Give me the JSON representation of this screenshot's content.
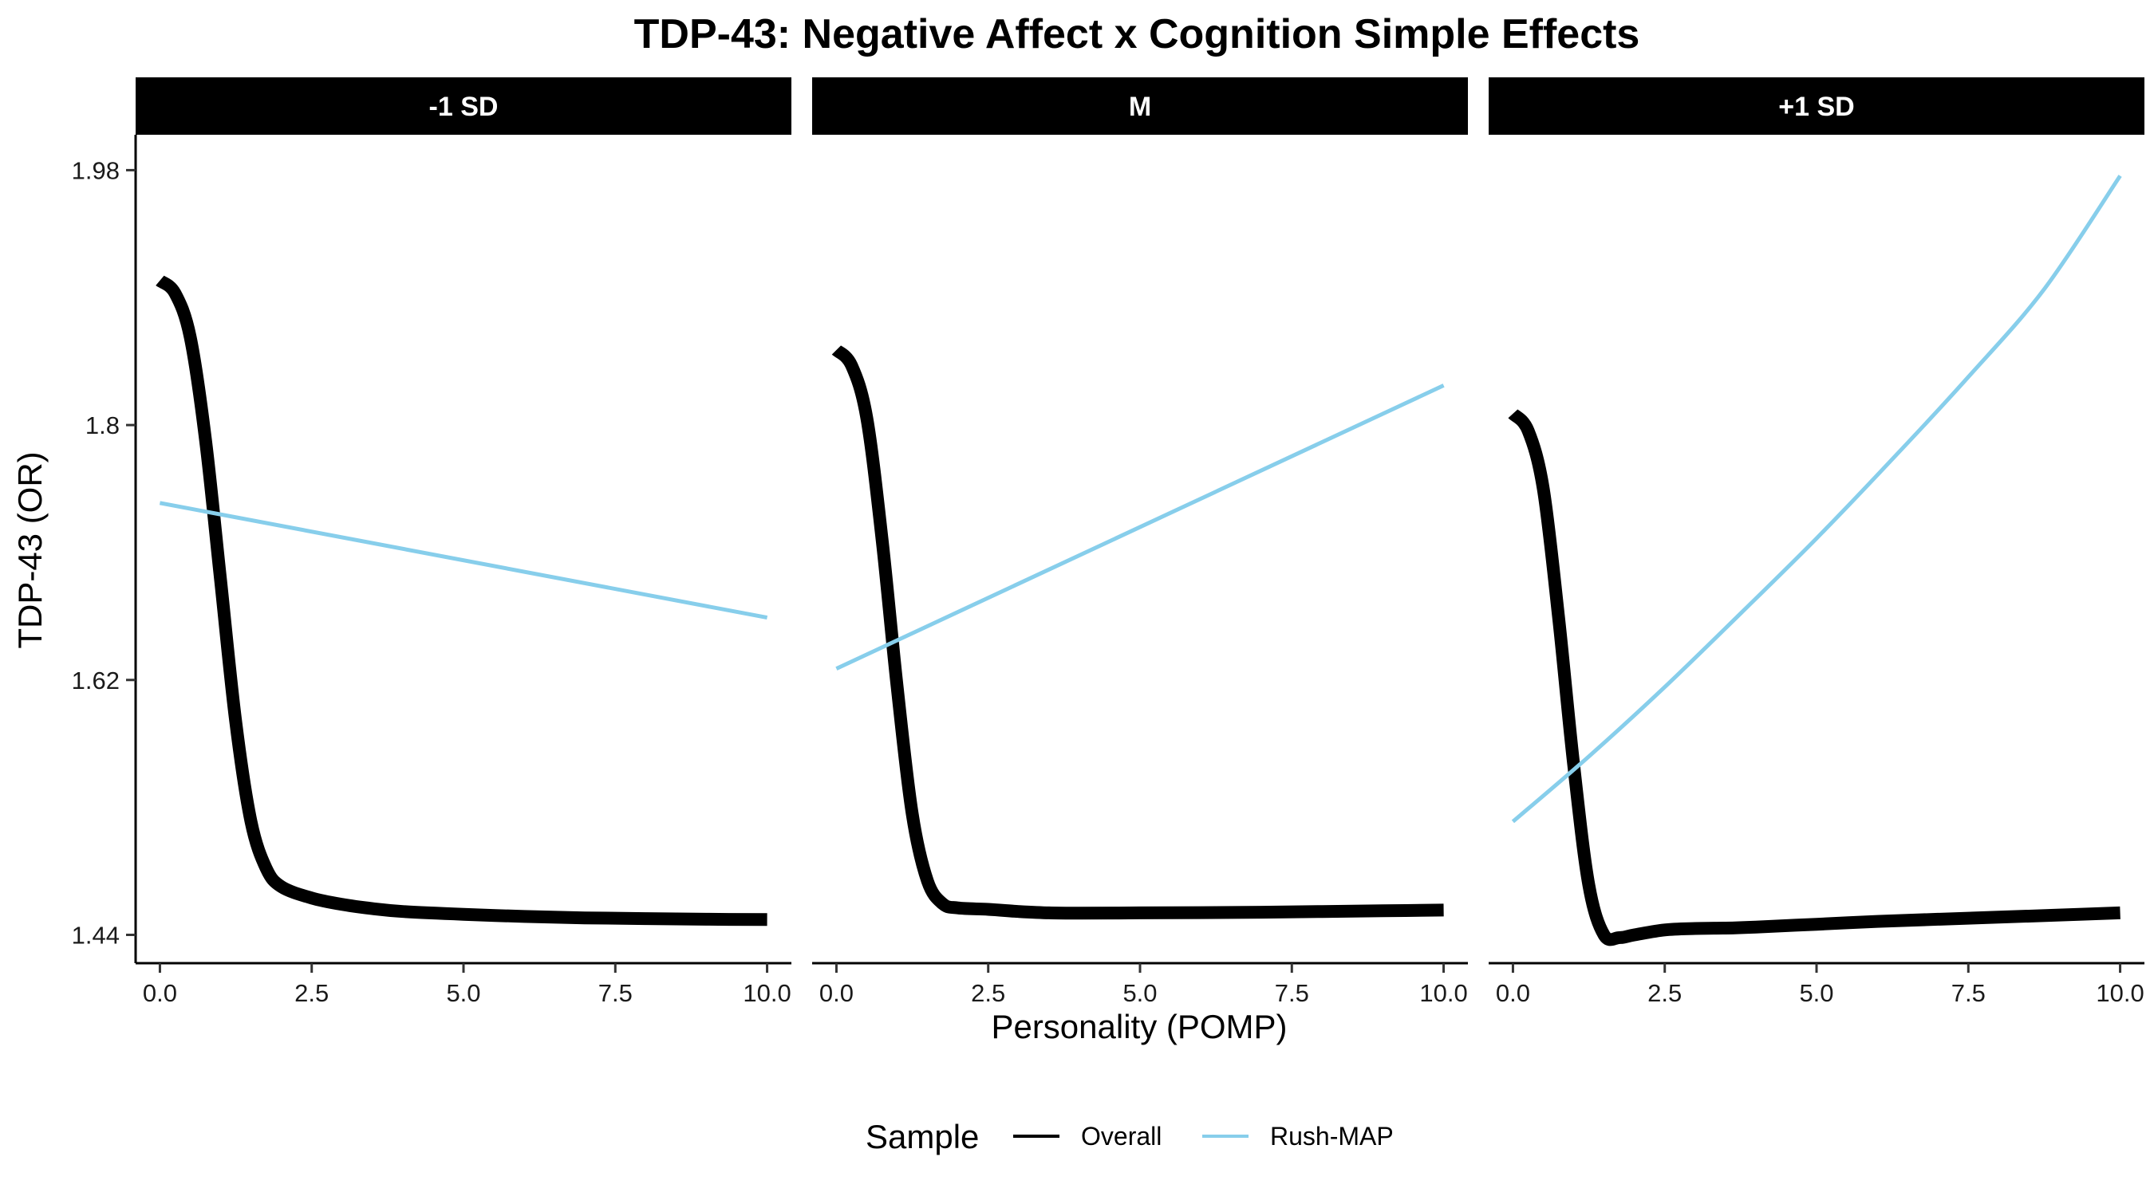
{
  "chart_data": {
    "type": "line",
    "title": "TDP-43: Negative Affect x Cognition Simple Effects",
    "xlabel": "Personality (POMP)",
    "ylabel": "TDP-43 (OR)",
    "xlim": [
      -0.4,
      10.4
    ],
    "ylim": [
      1.42,
      2.005
    ],
    "x_ticks": [
      0,
      2.5,
      5,
      7.5,
      10
    ],
    "x_tick_labels": [
      "0.0",
      "2.5",
      "5.0",
      "7.5",
      "10.0"
    ],
    "y_ticks": [
      1.44,
      1.62,
      1.8,
      1.98
    ],
    "y_tick_labels": [
      "1.44",
      "1.62",
      "1.8",
      "1.98"
    ],
    "grid": false,
    "legend": {
      "title": "Sample",
      "position": "bottom",
      "entries": [
        {
          "label": "Overall",
          "color": "#000000"
        },
        {
          "label": "Rush-MAP",
          "color": "#87ceeb"
        }
      ]
    },
    "panels": [
      {
        "label": "-1 SD",
        "series": [
          {
            "name": "Overall",
            "color": "#000000",
            "x": [
              0,
              0.25,
              0.5,
              0.75,
              1.0,
              1.25,
              1.5,
              1.75,
              2.0,
              2.5,
              3.0,
              3.5,
              4.0,
              5.0,
              6.0,
              7.0,
              8.0,
              9.0,
              10.0
            ],
            "y": [
              1.902,
              1.893,
              1.862,
              1.79,
              1.69,
              1.59,
              1.52,
              1.487,
              1.474,
              1.466,
              1.4615,
              1.4585,
              1.4565,
              1.4545,
              1.453,
              1.452,
              1.4515,
              1.451,
              1.4508
            ]
          },
          {
            "name": "Rush-MAP",
            "color": "#87ceeb",
            "x": [
              0,
              10
            ],
            "y": [
              1.745,
              1.664
            ]
          }
        ]
      },
      {
        "label": "M",
        "series": [
          {
            "name": "Overall",
            "color": "#000000",
            "x": [
              0,
              0.25,
              0.5,
              0.75,
              1.0,
              1.25,
              1.5,
              1.75,
              2.0,
              2.5,
              3.0,
              3.5,
              4.0,
              5.0,
              6.0,
              7.0,
              8.0,
              9.0,
              10.0
            ],
            "y": [
              1.853,
              1.842,
              1.805,
              1.72,
              1.615,
              1.525,
              1.478,
              1.462,
              1.459,
              1.458,
              1.4565,
              1.4555,
              1.4553,
              1.4555,
              1.4557,
              1.456,
              1.4565,
              1.457,
              1.4575
            ]
          },
          {
            "name": "Rush-MAP",
            "color": "#87ceeb",
            "x": [
              0,
              10
            ],
            "y": [
              1.628,
              1.828
            ]
          }
        ]
      },
      {
        "label": "+1 SD",
        "series": [
          {
            "name": "Overall",
            "color": "#000000",
            "x": [
              0,
              0.25,
              0.5,
              0.75,
              1.0,
              1.25,
              1.5,
              1.75,
              2.0,
              2.5,
              3.0,
              3.5,
              4.0,
              5.0,
              6.0,
              7.0,
              8.0,
              9.0,
              10.0
            ],
            "y": [
              1.808,
              1.796,
              1.755,
              1.665,
              1.56,
              1.475,
              1.44,
              1.438,
              1.44,
              1.4435,
              1.4445,
              1.4448,
              1.4455,
              1.4475,
              1.4495,
              1.451,
              1.4525,
              1.454,
              1.4555
            ]
          },
          {
            "name": "Rush-MAP",
            "color": "#87ceeb",
            "x": [
              0,
              1.25,
              2.5,
              3.75,
              5.0,
              6.25,
              7.5,
              8.75,
              10.0
            ],
            "y": [
              1.52,
              1.566,
              1.615,
              1.667,
              1.72,
              1.776,
              1.834,
              1.896,
              1.976
            ]
          }
        ]
      }
    ]
  }
}
